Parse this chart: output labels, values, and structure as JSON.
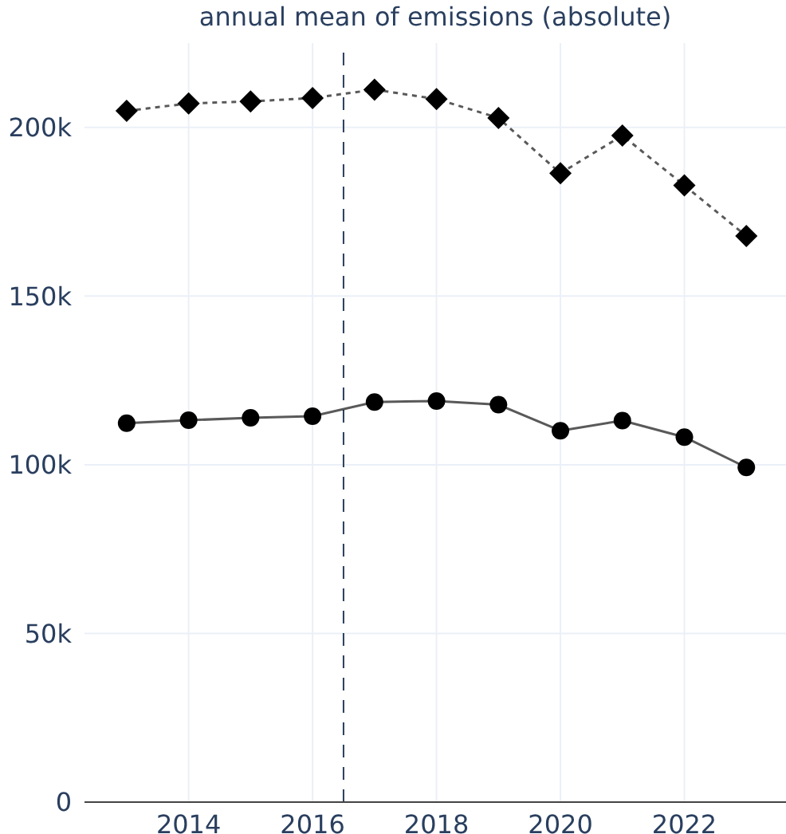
{
  "chart_data": {
    "type": "line",
    "title": "annual mean of emissions (absolute)",
    "x": [
      2013,
      2014,
      2015,
      2016,
      2017,
      2018,
      2019,
      2020,
      2021,
      2022,
      2023
    ],
    "series": [
      {
        "color": "#000000",
        "marker": "diamond",
        "line_style": "dotted",
        "values": [
          204900,
          207100,
          207700,
          208700,
          211200,
          208400,
          202800,
          186400,
          197600,
          182800,
          167800
        ]
      },
      {
        "color": "#000000",
        "marker": "circle",
        "line_style": "solid",
        "values": [
          112300,
          113200,
          113900,
          114400,
          118600,
          118900,
          117800,
          110100,
          113100,
          108200,
          99200
        ]
      }
    ],
    "xlim": [
      2012.32,
      2023.64
    ],
    "xticks": [
      2014,
      2016,
      2018,
      2020,
      2022
    ],
    "ylim": [
      0,
      225000
    ],
    "yticks": [
      {
        "value": 0,
        "label": "0"
      },
      {
        "value": 50000,
        "label": "50k"
      },
      {
        "value": 100000,
        "label": "100k"
      },
      {
        "value": 150000,
        "label": "150k"
      },
      {
        "value": 200000,
        "label": "200k"
      }
    ],
    "ref_lines": [
      {
        "axis": "x",
        "value": 2016.5,
        "label": null,
        "color": "#2a3f5f",
        "line_style": "dashed"
      }
    ],
    "grid": true,
    "legend": false
  }
}
